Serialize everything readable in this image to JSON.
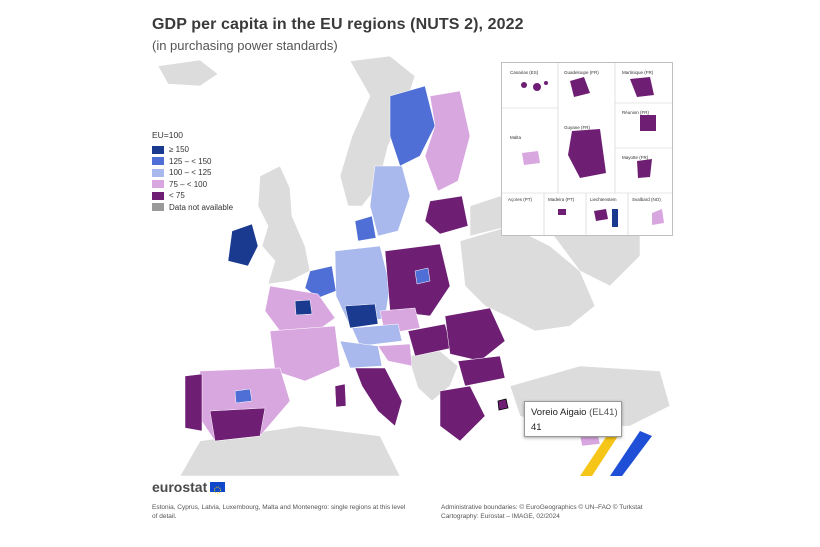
{
  "header": {
    "title": "GDP per capita in the EU regions (NUTS 2), 2022",
    "subtitle": "(in purchasing power standards)"
  },
  "legend": {
    "title": "EU=100",
    "items": [
      {
        "label": "≥ 150",
        "color": "#1a3a8f"
      },
      {
        "label": "125 – < 150",
        "color": "#4f6fd6"
      },
      {
        "label": "100 – < 125",
        "color": "#a9b9ee"
      },
      {
        "label": "75 – < 100",
        "color": "#d9a7e0"
      },
      {
        "label": "< 75",
        "color": "#6e1f74"
      },
      {
        "label": "Data not available",
        "color": "#9a9a9a"
      }
    ]
  },
  "insets": {
    "labels": [
      "Canarias (ES)",
      "Guadeloupe (FR)",
      "Martinique (FR)",
      "Malta",
      "Guyane (FR)",
      "Réunion (FR)",
      "Mayotte (FR)",
      "Açores (PT)",
      "Madeira (PT)",
      "Liechtenstein",
      "Svalbard (NO)"
    ]
  },
  "tooltip": {
    "region": "Voreio Aigaio",
    "code": "(EL41)",
    "value": "41"
  },
  "footer": {
    "logo": "eurostat",
    "note_left": "Estonia, Cyprus, Latvia, Luxembourg, Malta and Montenegro: single regions at this level of detail.",
    "note_right_1": "Administrative boundaries: © EuroGeographics © UN–FAO © Turkstat",
    "note_right_2": "Cartography: Eurostat – IMAGE, 02/2024"
  },
  "colors": {
    "very_high": "#1a3a8f",
    "high": "#4f6fd6",
    "above_avg": "#a9b9ee",
    "below_avg": "#d9a7e0",
    "low": "#6e1f74",
    "na": "#9a9a9a",
    "non_eu": "#dcdcdc",
    "sea": "#ffffff"
  }
}
